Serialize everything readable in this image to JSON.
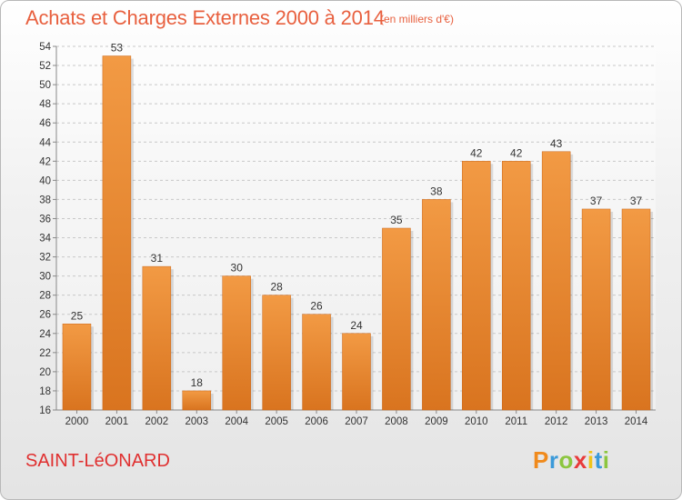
{
  "header": {
    "title": "Achats et Charges Externes 2000 à 2014",
    "subtitle": "(en milliers d'€)"
  },
  "footer": {
    "commune": "SAINT-LéONARD",
    "logo_letters": [
      "P",
      "r",
      "o",
      "x",
      "i",
      "t",
      "i"
    ],
    "logo_colors": [
      "#f08a1c",
      "#3b9ad9",
      "#8cc63f",
      "#e83a3a",
      "#f0c419",
      "#3b9ad9",
      "#8cc63f"
    ]
  },
  "chart_data": {
    "type": "bar",
    "categories": [
      "2000",
      "2001",
      "2002",
      "2003",
      "2004",
      "2005",
      "2006",
      "2007",
      "2008",
      "2009",
      "2010",
      "2011",
      "2012",
      "2013",
      "2014"
    ],
    "values": [
      25,
      53,
      31,
      18,
      30,
      28,
      26,
      24,
      35,
      38,
      42,
      42,
      43,
      37,
      37
    ],
    "title": "Achats et Charges Externes 2000 à 2014",
    "xlabel": "",
    "ylabel": "",
    "ylim": [
      16,
      54
    ],
    "yticks": [
      16,
      18,
      20,
      22,
      24,
      26,
      28,
      30,
      32,
      34,
      36,
      38,
      40,
      42,
      44,
      46,
      48,
      50,
      52,
      54
    ],
    "grid": true,
    "bar_color": "#f29a44",
    "bar_color_dark": "#d9741f"
  }
}
